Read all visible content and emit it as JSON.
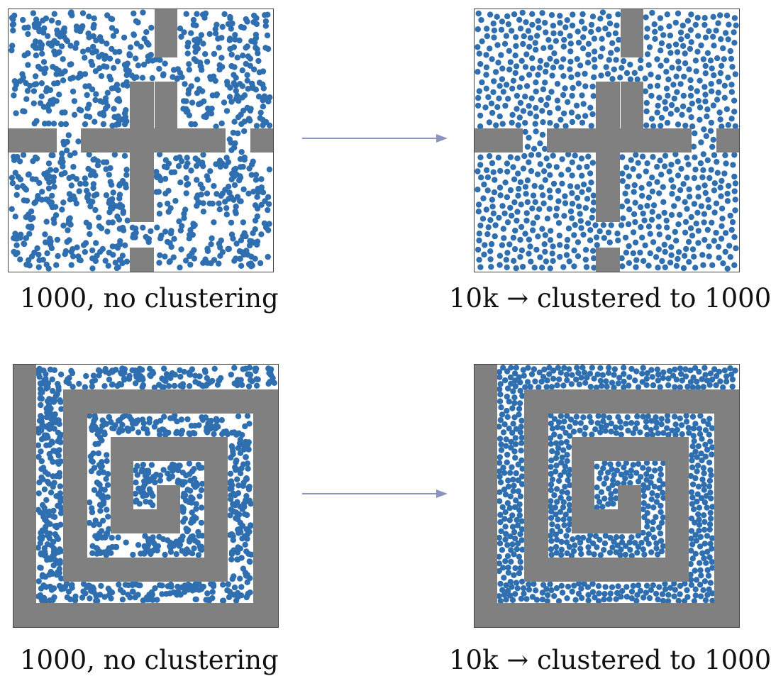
{
  "rows": [
    {
      "left": {
        "caption": "1000, no clustering",
        "samples": 1000
      },
      "right": {
        "caption": "10k → clustered to 1000",
        "samples": 1000
      }
    },
    {
      "left": {
        "caption": "1000, no clustering",
        "samples": 1000
      },
      "right": {
        "caption": "10k → clustered to 1000",
        "samples": 1000
      }
    }
  ],
  "colors": {
    "obstacle": "#808080",
    "point": "#2f6fb0",
    "arrow": "#8c93bf",
    "border": "#444444"
  }
}
